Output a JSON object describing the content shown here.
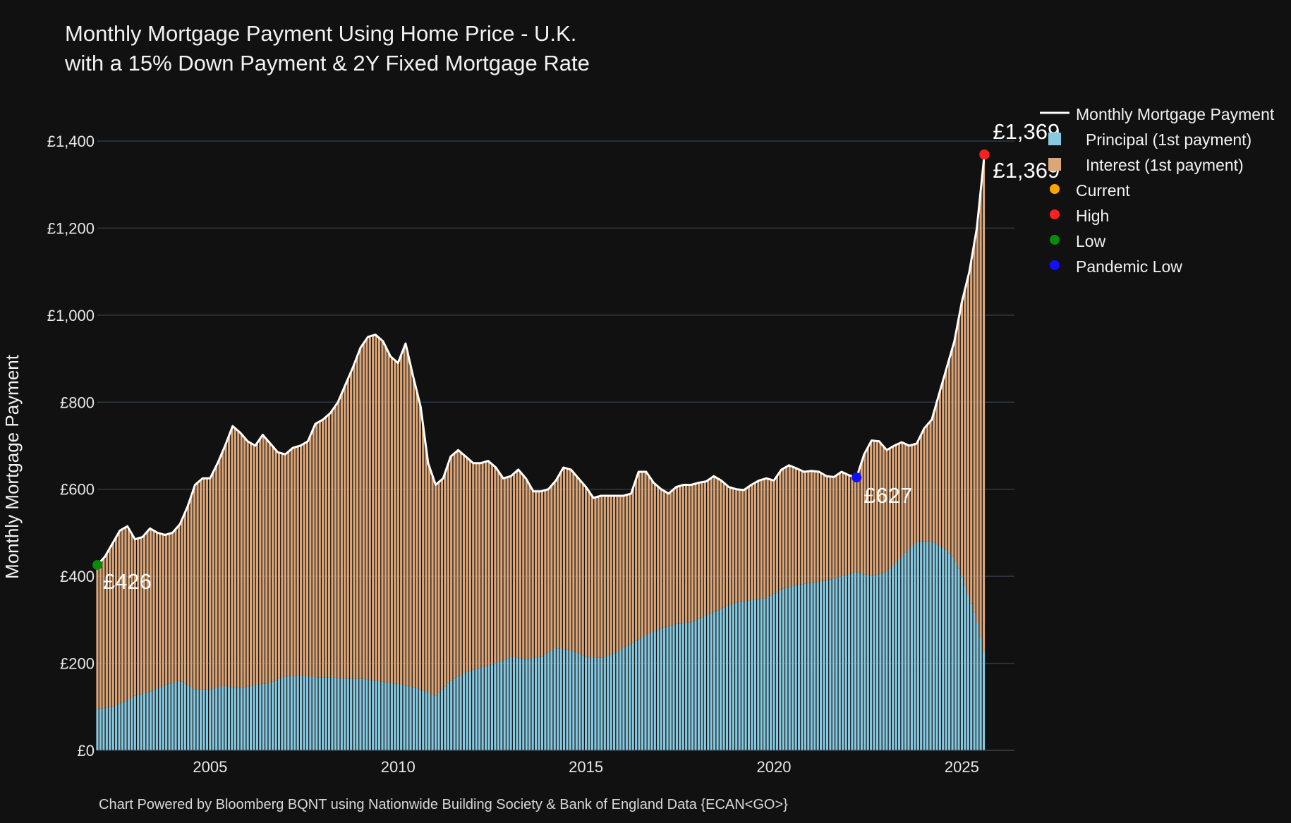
{
  "chart_data": {
    "type": "stacked bar + line",
    "title": "Monthly Mortgage Payment Using Home Price - U.K.",
    "subtitle": "with a 15% Down Payment & 2Y Fixed Mortgage Rate",
    "ylabel": "Monthly Mortgage Payment",
    "xlabel": "",
    "ylim": [
      0,
      1400
    ],
    "xlim": [
      2002.0,
      2026.4
    ],
    "y_ticks": [
      "£0",
      "£200",
      "£400",
      "£600",
      "£800",
      "£1,000",
      "£1,200",
      "£1,400"
    ],
    "y_tick_values": [
      0,
      200,
      400,
      600,
      800,
      1000,
      1200,
      1400
    ],
    "x_ticks": [
      "2005",
      "2010",
      "2015",
      "2020",
      "2025"
    ],
    "x_tick_values": [
      2005,
      2010,
      2015,
      2020,
      2025
    ],
    "grid": "horizontal",
    "legend_position": "top-right",
    "series": [
      {
        "name": "Monthly Mortgage Payment",
        "kind": "line",
        "color": "#ffffff",
        "points": [
          [
            2002.0,
            426
          ],
          [
            2002.2,
            445
          ],
          [
            2002.4,
            475
          ],
          [
            2002.6,
            505
          ],
          [
            2002.8,
            515
          ],
          [
            2003.0,
            485
          ],
          [
            2003.2,
            490
          ],
          [
            2003.4,
            510
          ],
          [
            2003.6,
            500
          ],
          [
            2003.8,
            495
          ],
          [
            2004.0,
            500
          ],
          [
            2004.2,
            520
          ],
          [
            2004.4,
            560
          ],
          [
            2004.6,
            610
          ],
          [
            2004.8,
            625
          ],
          [
            2005.0,
            625
          ],
          [
            2005.2,
            660
          ],
          [
            2005.4,
            700
          ],
          [
            2005.6,
            745
          ],
          [
            2005.8,
            730
          ],
          [
            2006.0,
            710
          ],
          [
            2006.2,
            700
          ],
          [
            2006.4,
            725
          ],
          [
            2006.6,
            705
          ],
          [
            2006.8,
            685
          ],
          [
            2007.0,
            680
          ],
          [
            2007.2,
            695
          ],
          [
            2007.4,
            700
          ],
          [
            2007.6,
            710
          ],
          [
            2007.8,
            750
          ],
          [
            2008.0,
            760
          ],
          [
            2008.2,
            775
          ],
          [
            2008.4,
            800
          ],
          [
            2008.6,
            840
          ],
          [
            2008.8,
            880
          ],
          [
            2009.0,
            925
          ],
          [
            2009.2,
            950
          ],
          [
            2009.4,
            955
          ],
          [
            2009.6,
            940
          ],
          [
            2009.8,
            905
          ],
          [
            2010.0,
            890
          ],
          [
            2010.2,
            935
          ],
          [
            2010.4,
            860
          ],
          [
            2010.6,
            790
          ],
          [
            2010.8,
            660
          ],
          [
            2011.0,
            610
          ],
          [
            2011.2,
            625
          ],
          [
            2011.4,
            675
          ],
          [
            2011.6,
            690
          ],
          [
            2011.8,
            675
          ],
          [
            2012.0,
            660
          ],
          [
            2012.2,
            660
          ],
          [
            2012.4,
            665
          ],
          [
            2012.6,
            650
          ],
          [
            2012.8,
            625
          ],
          [
            2013.0,
            630
          ],
          [
            2013.2,
            645
          ],
          [
            2013.4,
            625
          ],
          [
            2013.6,
            595
          ],
          [
            2013.8,
            595
          ],
          [
            2014.0,
            600
          ],
          [
            2014.2,
            620
          ],
          [
            2014.4,
            650
          ],
          [
            2014.6,
            645
          ],
          [
            2014.8,
            625
          ],
          [
            2015.0,
            605
          ],
          [
            2015.2,
            580
          ],
          [
            2015.4,
            585
          ],
          [
            2015.6,
            585
          ],
          [
            2015.8,
            585
          ],
          [
            2016.0,
            585
          ],
          [
            2016.2,
            590
          ],
          [
            2016.4,
            640
          ],
          [
            2016.6,
            640
          ],
          [
            2016.8,
            615
          ],
          [
            2017.0,
            600
          ],
          [
            2017.2,
            590
          ],
          [
            2017.4,
            605
          ],
          [
            2017.6,
            610
          ],
          [
            2017.8,
            610
          ],
          [
            2018.0,
            615
          ],
          [
            2018.2,
            618
          ],
          [
            2018.4,
            630
          ],
          [
            2018.6,
            620
          ],
          [
            2018.8,
            605
          ],
          [
            2019.0,
            600
          ],
          [
            2019.2,
            598
          ],
          [
            2019.4,
            610
          ],
          [
            2019.6,
            620
          ],
          [
            2019.8,
            625
          ],
          [
            2020.0,
            620
          ],
          [
            2020.2,
            645
          ],
          [
            2020.4,
            655
          ],
          [
            2020.6,
            648
          ],
          [
            2020.8,
            640
          ],
          [
            2021.0,
            642
          ],
          [
            2021.2,
            640
          ],
          [
            2021.4,
            630
          ],
          [
            2021.6,
            628
          ],
          [
            2021.8,
            640
          ],
          [
            2022.0,
            632
          ],
          [
            2022.2,
            627
          ],
          [
            2022.4,
            680
          ],
          [
            2022.6,
            712
          ],
          [
            2022.8,
            710
          ],
          [
            2023.0,
            690
          ],
          [
            2023.2,
            700
          ],
          [
            2023.4,
            708
          ],
          [
            2023.6,
            700
          ],
          [
            2023.8,
            705
          ],
          [
            2024.0,
            740
          ],
          [
            2024.2,
            760
          ],
          [
            2024.4,
            820
          ],
          [
            2024.6,
            880
          ],
          [
            2024.8,
            940
          ],
          [
            2025.0,
            1030
          ],
          [
            2025.2,
            1100
          ],
          [
            2025.4,
            1200
          ],
          [
            2025.6,
            1369
          ]
        ]
      },
      {
        "name": "Principal (1st payment)",
        "kind": "bar",
        "color": "#87c9e0",
        "points": [
          [
            2002.0,
            95
          ],
          [
            2002.4,
            100
          ],
          [
            2002.8,
            115
          ],
          [
            2003.0,
            125
          ],
          [
            2003.4,
            135
          ],
          [
            2003.8,
            150
          ],
          [
            2004.2,
            160
          ],
          [
            2004.6,
            140
          ],
          [
            2005.0,
            140
          ],
          [
            2005.4,
            148
          ],
          [
            2005.8,
            142
          ],
          [
            2006.2,
            150
          ],
          [
            2006.6,
            155
          ],
          [
            2007.0,
            170
          ],
          [
            2007.4,
            172
          ],
          [
            2007.8,
            168
          ],
          [
            2008.2,
            168
          ],
          [
            2008.6,
            165
          ],
          [
            2009.0,
            165
          ],
          [
            2009.4,
            160
          ],
          [
            2009.8,
            155
          ],
          [
            2010.2,
            150
          ],
          [
            2010.6,
            140
          ],
          [
            2011.0,
            125
          ],
          [
            2011.4,
            160
          ],
          [
            2011.8,
            180
          ],
          [
            2012.2,
            190
          ],
          [
            2012.6,
            200
          ],
          [
            2013.0,
            215
          ],
          [
            2013.4,
            210
          ],
          [
            2013.8,
            215
          ],
          [
            2014.2,
            235
          ],
          [
            2014.6,
            230
          ],
          [
            2015.0,
            215
          ],
          [
            2015.4,
            212
          ],
          [
            2015.8,
            225
          ],
          [
            2016.2,
            245
          ],
          [
            2016.6,
            265
          ],
          [
            2017.0,
            280
          ],
          [
            2017.4,
            290
          ],
          [
            2017.8,
            295
          ],
          [
            2018.2,
            310
          ],
          [
            2018.6,
            325
          ],
          [
            2019.0,
            340
          ],
          [
            2019.4,
            345
          ],
          [
            2019.8,
            350
          ],
          [
            2020.2,
            370
          ],
          [
            2020.6,
            380
          ],
          [
            2021.0,
            385
          ],
          [
            2021.4,
            390
          ],
          [
            2021.8,
            400
          ],
          [
            2022.2,
            410
          ],
          [
            2022.6,
            400
          ],
          [
            2023.0,
            410
          ],
          [
            2023.4,
            445
          ],
          [
            2023.8,
            480
          ],
          [
            2024.2,
            480
          ],
          [
            2024.6,
            460
          ],
          [
            2024.8,
            440
          ],
          [
            2025.0,
            400
          ],
          [
            2025.2,
            350
          ],
          [
            2025.4,
            300
          ],
          [
            2025.6,
            220
          ]
        ]
      },
      {
        "name": "Interest (1st payment)",
        "kind": "bar",
        "color": "#dca678",
        "note": "stacked on top of principal; total equals Monthly Mortgage Payment"
      }
    ],
    "markers": [
      {
        "name": "Current",
        "color": "#ffa500",
        "x": 2025.6,
        "y": 1369,
        "label": "£1,369"
      },
      {
        "name": "High",
        "color": "#ff2020",
        "x": 2025.6,
        "y": 1369,
        "label": "£1,369"
      },
      {
        "name": "Low",
        "color": "#0a8a0a",
        "x": 2002.0,
        "y": 426,
        "label": "£426"
      },
      {
        "name": "Pandemic Low",
        "color": "#1010ff",
        "x": 2022.2,
        "y": 627,
        "label": "£627"
      }
    ]
  },
  "footer": "Chart Powered by Bloomberg BQNT using Nationwide Building Society & Bank of England Data   {ECAN<GO>}",
  "legend": [
    {
      "label": "Monthly Mortgage Payment",
      "symbol": "line",
      "color": "#ffffff"
    },
    {
      "label": "Principal (1st payment)",
      "symbol": "square",
      "color": "#87c9e0"
    },
    {
      "label": "Interest (1st payment)",
      "symbol": "square",
      "color": "#dca678"
    },
    {
      "label": "Current",
      "symbol": "dot",
      "color": "#ffa500"
    },
    {
      "label": "High",
      "symbol": "dot",
      "color": "#ff2020"
    },
    {
      "label": "Low",
      "symbol": "dot",
      "color": "#0a8a0a"
    },
    {
      "label": "Pandemic Low",
      "symbol": "dot",
      "color": "#1010ff"
    }
  ]
}
